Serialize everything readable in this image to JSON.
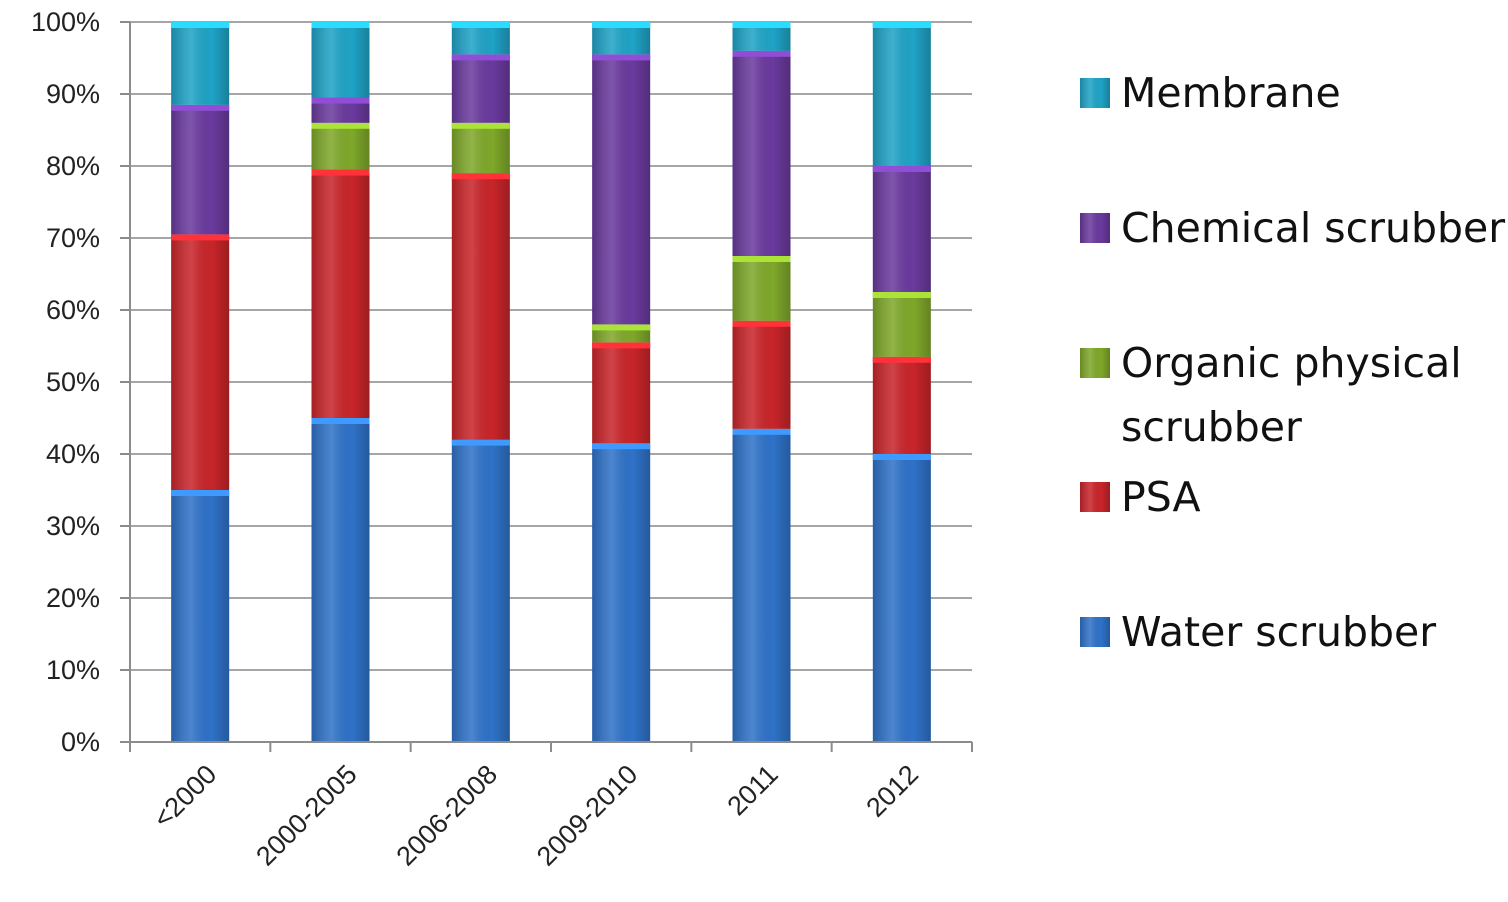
{
  "chart_data": {
    "type": "bar",
    "stacked": true,
    "categories": [
      "<2000",
      "2000-2005",
      "2006-2008",
      "2009-2010",
      "2011",
      "2012"
    ],
    "series": [
      {
        "name": "Water scrubber",
        "color": "#2F72C8",
        "values": [
          35,
          45,
          42,
          41.5,
          43.5,
          40
        ]
      },
      {
        "name": "PSA",
        "color": "#C8252A",
        "values": [
          35.5,
          34.5,
          37,
          14,
          15,
          13.5
        ]
      },
      {
        "name": "Organic physical scrubber",
        "color": "#7FA82A",
        "values": [
          0,
          6.5,
          7,
          2.5,
          9,
          9
        ]
      },
      {
        "name": "Chemical scrubber",
        "color": "#6A3A9E",
        "values": [
          18,
          3.5,
          9.5,
          37.5,
          28.5,
          17.5
        ]
      },
      {
        "name": "Membrane",
        "color": "#1FA3C6",
        "values": [
          11.5,
          10.5,
          4.5,
          4.5,
          4,
          20
        ]
      }
    ],
    "yticks": [
      "0%",
      "10%",
      "20%",
      "30%",
      "40%",
      "50%",
      "60%",
      "70%",
      "80%",
      "90%",
      "100%"
    ],
    "ylim": [
      0,
      100
    ],
    "grid": true,
    "legend_position": "right",
    "legend_order": [
      "Membrane",
      "Chemical scrubber",
      "Organic physical scrubber",
      "PSA",
      "Water scrubber"
    ],
    "legend_lines": {
      "Membrane": [
        "Membrane"
      ],
      "Chemical scrubber": [
        "Chemical scrubber"
      ],
      "Organic physical scrubber": [
        "Organic physical",
        "scrubber"
      ],
      "PSA": [
        "PSA"
      ],
      "Water scrubber": [
        "Water scrubber"
      ]
    },
    "title": "",
    "xlabel": "",
    "ylabel": ""
  }
}
